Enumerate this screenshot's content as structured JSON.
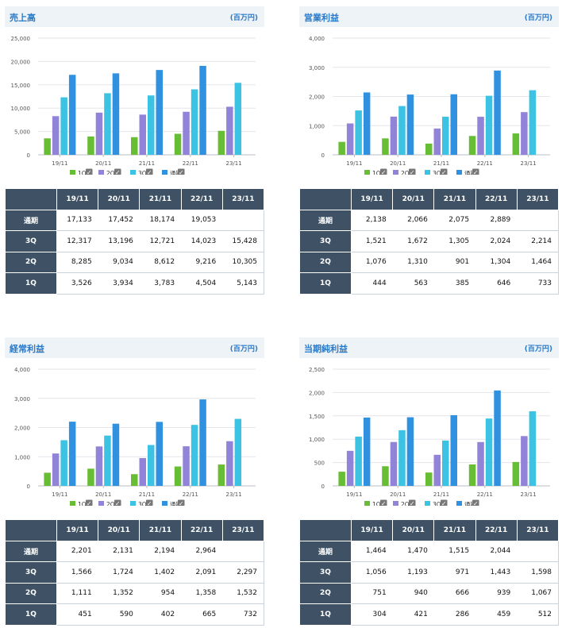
{
  "unit_label": "(百万円)",
  "legend": [
    {
      "name": "1Q",
      "color": "#67bd33"
    },
    {
      "name": "2Q",
      "color": "#9184d8"
    },
    {
      "name": "3Q",
      "color": "#3cc2e2"
    },
    {
      "name": "通期",
      "color": "#2f91e0"
    }
  ],
  "check_glyph": "✓",
  "chart_data": [
    {
      "type": "bar",
      "title": "売上高",
      "categories": [
        "19/11",
        "20/11",
        "21/11",
        "22/11",
        "23/11"
      ],
      "ylim": [
        0,
        25000
      ],
      "yticks": [
        "0",
        "5,000",
        "10,000",
        "15,000",
        "20,000",
        "25,000"
      ],
      "series": [
        {
          "name": "1Q",
          "values": [
            3526,
            3934,
            3783,
            4504,
            5143
          ]
        },
        {
          "name": "2Q",
          "values": [
            8285,
            9034,
            8612,
            9216,
            10305
          ]
        },
        {
          "name": "3Q",
          "values": [
            12317,
            13196,
            12721,
            14023,
            15428
          ]
        },
        {
          "name": "通期",
          "values": [
            17133,
            17452,
            18174,
            19053,
            null
          ]
        }
      ],
      "table": {
        "columns": [
          "19/11",
          "20/11",
          "21/11",
          "22/11",
          "23/11"
        ],
        "rows": [
          {
            "label": "通期",
            "cells": [
              "17,133",
              "17,452",
              "18,174",
              "19,053",
              ""
            ]
          },
          {
            "label": "3Q",
            "cells": [
              "12,317",
              "13,196",
              "12,721",
              "14,023",
              "15,428"
            ]
          },
          {
            "label": "2Q",
            "cells": [
              "8,285",
              "9,034",
              "8,612",
              "9,216",
              "10,305"
            ]
          },
          {
            "label": "1Q",
            "cells": [
              "3,526",
              "3,934",
              "3,783",
              "4,504",
              "5,143"
            ]
          }
        ]
      }
    },
    {
      "type": "bar",
      "title": "営業利益",
      "categories": [
        "19/11",
        "20/11",
        "21/11",
        "22/11",
        "23/11"
      ],
      "ylim": [
        0,
        4000
      ],
      "yticks": [
        "0",
        "1,000",
        "2,000",
        "3,000",
        "4,000"
      ],
      "series": [
        {
          "name": "1Q",
          "values": [
            444,
            563,
            385,
            646,
            733
          ]
        },
        {
          "name": "2Q",
          "values": [
            1076,
            1310,
            901,
            1304,
            1464
          ]
        },
        {
          "name": "3Q",
          "values": [
            1521,
            1672,
            1305,
            2024,
            2214
          ]
        },
        {
          "name": "通期",
          "values": [
            2138,
            2066,
            2075,
            2889,
            null
          ]
        }
      ],
      "table": {
        "columns": [
          "19/11",
          "20/11",
          "21/11",
          "22/11",
          "23/11"
        ],
        "rows": [
          {
            "label": "通期",
            "cells": [
              "2,138",
              "2,066",
              "2,075",
              "2,889",
              ""
            ]
          },
          {
            "label": "3Q",
            "cells": [
              "1,521",
              "1,672",
              "1,305",
              "2,024",
              "2,214"
            ]
          },
          {
            "label": "2Q",
            "cells": [
              "1,076",
              "1,310",
              "901",
              "1,304",
              "1,464"
            ]
          },
          {
            "label": "1Q",
            "cells": [
              "444",
              "563",
              "385",
              "646",
              "733"
            ]
          }
        ]
      }
    },
    {
      "type": "bar",
      "title": "経常利益",
      "categories": [
        "19/11",
        "20/11",
        "21/11",
        "22/11",
        "23/11"
      ],
      "ylim": [
        0,
        4000
      ],
      "yticks": [
        "0",
        "1,000",
        "2,000",
        "3,000",
        "4,000"
      ],
      "series": [
        {
          "name": "1Q",
          "values": [
            451,
            590,
            402,
            665,
            732
          ]
        },
        {
          "name": "2Q",
          "values": [
            1111,
            1352,
            954,
            1358,
            1532
          ]
        },
        {
          "name": "3Q",
          "values": [
            1566,
            1724,
            1402,
            2091,
            2297
          ]
        },
        {
          "name": "通期",
          "values": [
            2201,
            2131,
            2194,
            2964,
            null
          ]
        }
      ],
      "table": {
        "columns": [
          "19/11",
          "20/11",
          "21/11",
          "22/11",
          "23/11"
        ],
        "rows": [
          {
            "label": "通期",
            "cells": [
              "2,201",
              "2,131",
              "2,194",
              "2,964",
              ""
            ]
          },
          {
            "label": "3Q",
            "cells": [
              "1,566",
              "1,724",
              "1,402",
              "2,091",
              "2,297"
            ]
          },
          {
            "label": "2Q",
            "cells": [
              "1,111",
              "1,352",
              "954",
              "1,358",
              "1,532"
            ]
          },
          {
            "label": "1Q",
            "cells": [
              "451",
              "590",
              "402",
              "665",
              "732"
            ]
          }
        ]
      }
    },
    {
      "type": "bar",
      "title": "当期純利益",
      "categories": [
        "19/11",
        "20/11",
        "21/11",
        "22/11",
        "23/11"
      ],
      "ylim": [
        0,
        2500
      ],
      "yticks": [
        "0",
        "500",
        "1,000",
        "1,500",
        "2,000",
        "2,500"
      ],
      "series": [
        {
          "name": "1Q",
          "values": [
            304,
            421,
            286,
            459,
            512
          ]
        },
        {
          "name": "2Q",
          "values": [
            751,
            940,
            666,
            939,
            1067
          ]
        },
        {
          "name": "3Q",
          "values": [
            1056,
            1193,
            971,
            1443,
            1598
          ]
        },
        {
          "name": "通期",
          "values": [
            1464,
            1470,
            1515,
            2044,
            null
          ]
        }
      ],
      "table": {
        "columns": [
          "19/11",
          "20/11",
          "21/11",
          "22/11",
          "23/11"
        ],
        "rows": [
          {
            "label": "通期",
            "cells": [
              "1,464",
              "1,470",
              "1,515",
              "2,044",
              ""
            ]
          },
          {
            "label": "3Q",
            "cells": [
              "1,056",
              "1,193",
              "971",
              "1,443",
              "1,598"
            ]
          },
          {
            "label": "2Q",
            "cells": [
              "751",
              "940",
              "666",
              "939",
              "1,067"
            ]
          },
          {
            "label": "1Q",
            "cells": [
              "304",
              "421",
              "286",
              "459",
              "512"
            ]
          }
        ]
      }
    }
  ]
}
